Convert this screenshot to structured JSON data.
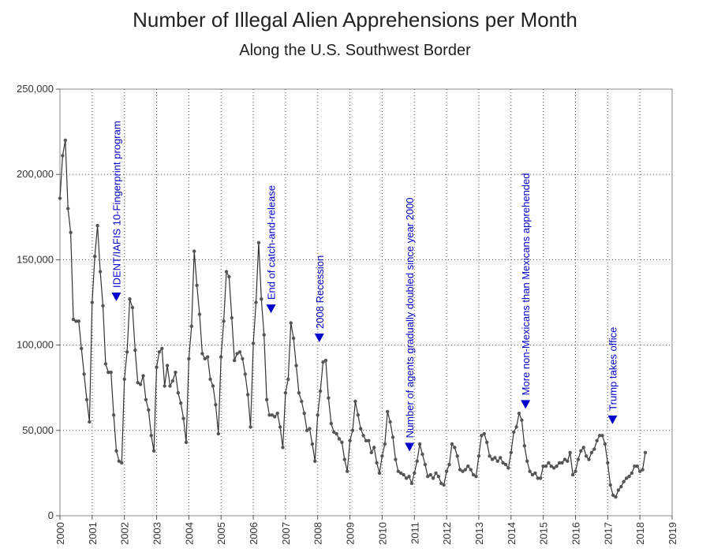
{
  "chart_data": {
    "type": "line",
    "title": "Number of Illegal Alien Apprehensions per Month",
    "subtitle": "Along the U.S. Southwest Border",
    "xlabel": "",
    "ylabel": "",
    "xlim": [
      2000,
      2019
    ],
    "ylim": [
      0,
      250000
    ],
    "grid": true,
    "x_ticks": [
      "2000",
      "2001",
      "2002",
      "2003",
      "2004",
      "2005",
      "2006",
      "2007",
      "2008",
      "2009",
      "2010",
      "2011",
      "2012",
      "2013",
      "2014",
      "2015",
      "2016",
      "2017",
      "2018",
      "2019"
    ],
    "y_ticks": [
      "0",
      "50,000",
      "100,000",
      "150,000",
      "200,000",
      "250,000"
    ],
    "x_start": 2000,
    "series": [
      {
        "values": [
          186000,
          211000,
          220000,
          180000,
          166000,
          115000,
          114000,
          114000,
          98000,
          83000,
          68000,
          55000,
          125000,
          152000,
          170000,
          143000,
          123000,
          89000,
          84000,
          84000,
          59000,
          38000,
          32000,
          31000,
          80000,
          96000,
          127000,
          122000,
          97000,
          78000,
          77000,
          82000,
          68000,
          62000,
          47000,
          38000,
          87000,
          96000,
          98000,
          76000,
          88000,
          76000,
          79000,
          84000,
          72000,
          66000,
          57000,
          43000,
          92000,
          111000,
          155000,
          135000,
          118000,
          95000,
          92000,
          93000,
          80000,
          76000,
          65000,
          48000,
          93000,
          114000,
          143000,
          140000,
          116000,
          91000,
          95000,
          96000,
          92000,
          83000,
          71000,
          52000,
          101000,
          125000,
          160000,
          127000,
          106000,
          68000,
          59000,
          59000,
          58000,
          60000,
          52000,
          40000,
          72000,
          80000,
          113000,
          104000,
          88000,
          72000,
          67000,
          60000,
          50000,
          51000,
          42000,
          32000,
          59000,
          73000,
          90000,
          91000,
          69000,
          54000,
          49000,
          48000,
          45000,
          43000,
          33000,
          26000,
          44000,
          50000,
          67000,
          59000,
          51000,
          47000,
          44000,
          44000,
          37000,
          40000,
          31000,
          25000,
          35000,
          42000,
          61000,
          55000,
          46000,
          33000,
          26000,
          25000,
          24000,
          22000,
          23000,
          19000,
          25000,
          32000,
          42000,
          36000,
          30000,
          23000,
          24000,
          22000,
          25000,
          23000,
          19000,
          18000,
          26000,
          30000,
          42000,
          40000,
          35000,
          27000,
          26000,
          27000,
          29000,
          27000,
          24000,
          23000,
          35000,
          47000,
          48000,
          43000,
          35000,
          33000,
          34000,
          32000,
          34000,
          31000,
          30000,
          28000,
          37000,
          49000,
          52000,
          60000,
          56000,
          41000,
          32000,
          26000,
          24000,
          25000,
          22000,
          22000,
          29000,
          29000,
          31000,
          29000,
          28000,
          29000,
          31000,
          31000,
          33000,
          32000,
          37000,
          24000,
          26000,
          33000,
          38000,
          40000,
          35000,
          33000,
          37000,
          39000,
          44000,
          47000,
          47000,
          42000,
          31000,
          18000,
          12000,
          11000,
          15000,
          17000,
          20000,
          22000,
          23000,
          25000,
          29000,
          29000,
          26000,
          27000,
          37000
        ]
      }
    ],
    "annotations": [
      {
        "x": 2001.75,
        "y": 128000,
        "label": "IDENT/IAFIS 10-Fingerprint program"
      },
      {
        "x": 2006.55,
        "y": 121000,
        "label": "End of catch-and-release"
      },
      {
        "x": 2008.05,
        "y": 104000,
        "label": "2008 Recession"
      },
      {
        "x": 2010.85,
        "y": 40000,
        "label": "Number of agents gradually doubled since year 2000"
      },
      {
        "x": 2014.45,
        "y": 65000,
        "label": "More non-Mexicans than Mexicans apprehended"
      },
      {
        "x": 2017.15,
        "y": 56000,
        "label": "Trump takes office"
      }
    ]
  }
}
